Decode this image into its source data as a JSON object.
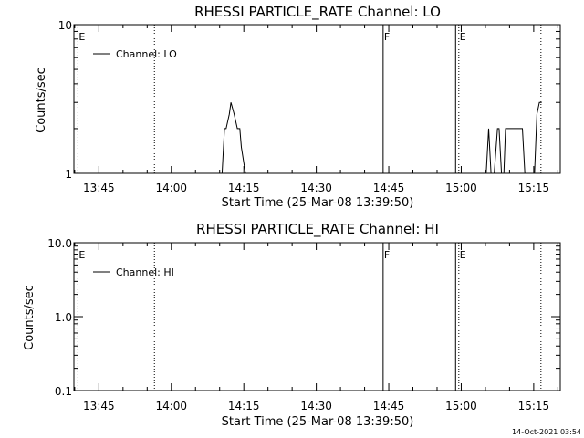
{
  "chart_data": [
    {
      "type": "line",
      "title": "RHESSI PARTICLE_RATE Channel: LO",
      "xlabel": "Start Time (25-Mar-08 13:39:50)",
      "ylabel": "Counts/sec",
      "yscale": "log",
      "ylim": [
        1,
        10
      ],
      "xlim": [
        "13:39:50",
        "15:20:30"
      ],
      "x_ticks": [
        "13:45",
        "14:00",
        "14:15",
        "14:30",
        "14:45",
        "15:00",
        "15:15"
      ],
      "y_ticks": [
        "1",
        "10"
      ],
      "legend": {
        "label": "Channel: LO",
        "placement": "top-left"
      },
      "markers": [
        {
          "time": "13:40:40",
          "label": "E",
          "style": "dotted"
        },
        {
          "time": "13:56:30",
          "label": "",
          "style": "dotted"
        },
        {
          "time": "14:43:50",
          "label": "F",
          "style": "solid"
        },
        {
          "time": "14:58:50",
          "label": "",
          "style": "solid"
        },
        {
          "time": "14:59:30",
          "label": "E",
          "style": "dotted"
        },
        {
          "time": "15:16:30",
          "label": "",
          "style": "dotted"
        }
      ],
      "series": [
        {
          "segments": [
            {
              "times": [
                "14:10:30",
                "14:11:00",
                "14:11:20",
                "14:12:00",
                "14:12:20",
                "14:13:00",
                "14:13:40",
                "14:14:10",
                "14:14:30",
                "14:15:20"
              ],
              "values": [
                1,
                2,
                2,
                2.5,
                3,
                2.5,
                2,
                2,
                1.5,
                1
              ]
            },
            {
              "times": [
                "15:05:10",
                "15:05:40",
                "15:06:10",
                "15:06:50",
                "15:07:30",
                "15:07:50",
                "15:08:20",
                "15:08:50",
                "15:09:10",
                "15:09:30",
                "15:10:10",
                "15:11:30",
                "15:12:40",
                "15:13:10",
                "15:13:30",
                "15:14:20",
                "15:15:10",
                "15:15:40",
                "15:16:10",
                "15:16:40"
              ],
              "values": [
                1,
                2,
                1,
                1,
                2,
                2,
                1,
                1,
                2,
                2,
                2,
                2,
                2,
                1,
                1,
                1,
                1,
                2.5,
                3,
                3
              ]
            }
          ]
        }
      ]
    },
    {
      "type": "line",
      "title": "RHESSI PARTICLE_RATE Channel: HI",
      "xlabel": "Start Time (25-Mar-08 13:39:50)",
      "ylabel": "Counts/sec",
      "yscale": "log",
      "ylim": [
        0.1,
        10
      ],
      "xlim": [
        "13:39:50",
        "15:20:30"
      ],
      "x_ticks": [
        "13:45",
        "14:00",
        "14:15",
        "14:30",
        "14:45",
        "15:00",
        "15:15"
      ],
      "y_ticks": [
        "0.1",
        "1.0",
        "10.0"
      ],
      "legend": {
        "label": "Channel: HI",
        "placement": "top-left"
      },
      "markers": [
        {
          "time": "13:40:40",
          "label": "E",
          "style": "dotted"
        },
        {
          "time": "13:56:30",
          "label": "",
          "style": "dotted"
        },
        {
          "time": "14:43:50",
          "label": "F",
          "style": "solid"
        },
        {
          "time": "14:58:50",
          "label": "",
          "style": "solid"
        },
        {
          "time": "14:59:30",
          "label": "E",
          "style": "dotted"
        },
        {
          "time": "15:16:30",
          "label": "",
          "style": "dotted"
        }
      ],
      "series": [
        {
          "segments": []
        }
      ]
    }
  ],
  "footer": {
    "timestamp": "14-Oct-2021 03:54"
  }
}
